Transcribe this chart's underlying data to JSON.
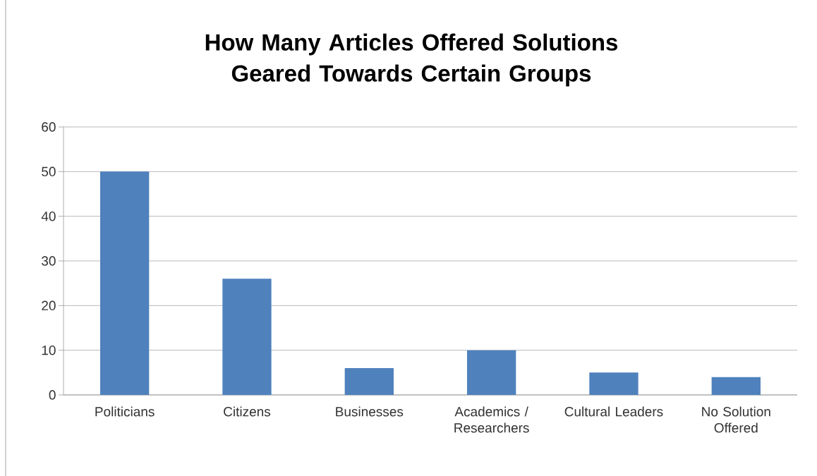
{
  "chart_data": {
    "type": "bar",
    "title": "How Many Articles Offered Solutions Geared Towards Certain Groups",
    "categories": [
      "Politicians",
      "Citizens",
      "Businesses",
      "Academics / Researchers",
      "Cultural Leaders",
      "No Solution Offered"
    ],
    "values": [
      50,
      26,
      6,
      10,
      5,
      4
    ],
    "color": "#4f81bd",
    "ylim": [
      0,
      60
    ],
    "yticks": [
      0,
      10,
      20,
      30,
      40,
      50,
      60
    ],
    "grid": "y"
  }
}
